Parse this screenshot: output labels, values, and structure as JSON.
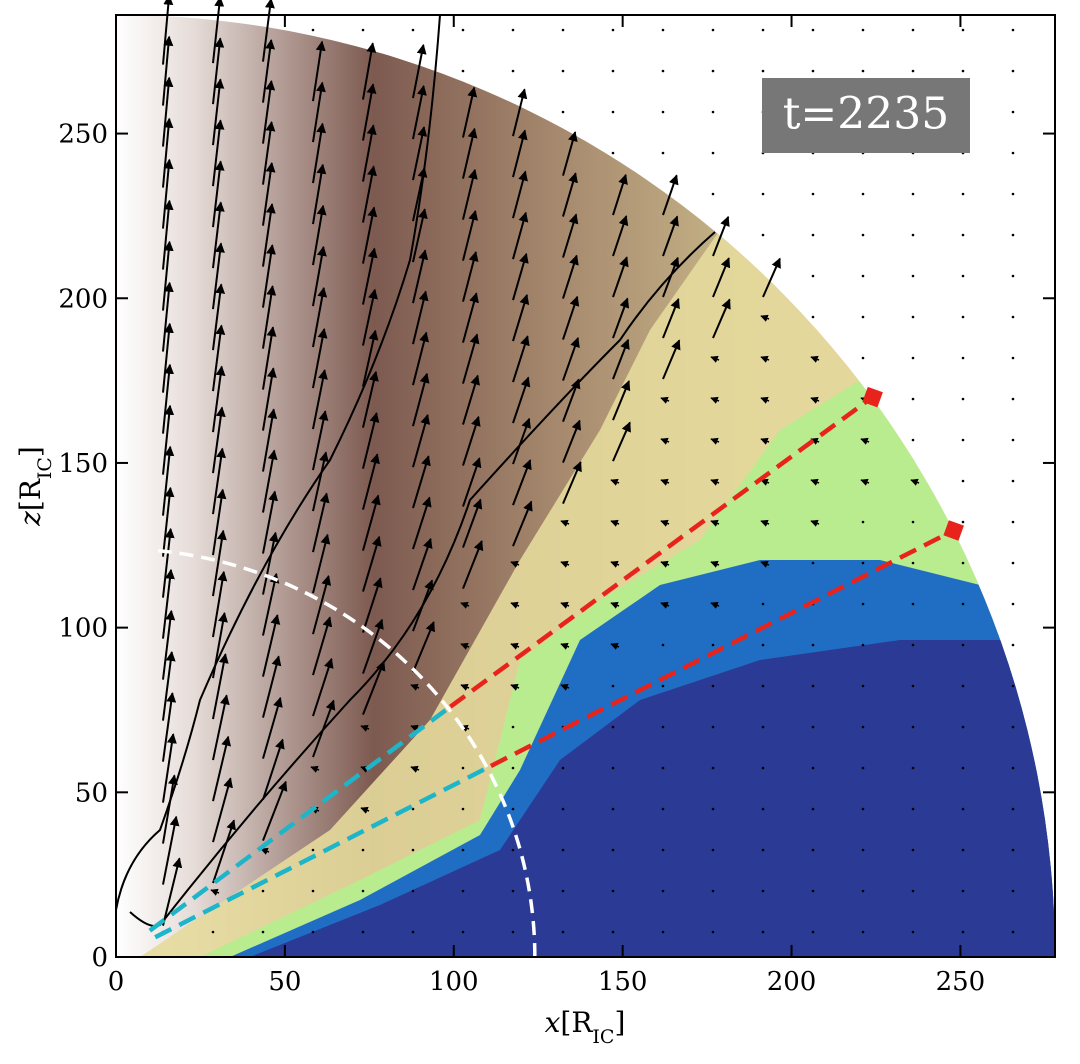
{
  "chart_data": {
    "type": "field",
    "annotation": "t=2235",
    "xlabel": [
      "x",
      "[R",
      "IC",
      "]"
    ],
    "ylabel": [
      "z",
      "[R",
      "IC",
      "]"
    ],
    "xlim": [
      0,
      278
    ],
    "ylim": [
      0,
      286
    ],
    "xticks": [
      0,
      50,
      100,
      150,
      200,
      250
    ],
    "yticks": [
      0,
      50,
      100,
      150,
      200,
      250
    ],
    "circle": {
      "radius": 124,
      "color": "#ffffff"
    },
    "lines": [
      {
        "color": "#1fb5c9",
        "x": [
          10,
          99
        ],
        "y": [
          8,
          76
        ]
      },
      {
        "color": "#1fb5c9",
        "x": [
          11.6,
          111
        ],
        "y": [
          6,
          58
        ]
      },
      {
        "color": "#e8231c",
        "marker": "square",
        "x": [
          99,
          224
        ],
        "y": [
          76,
          170
        ]
      },
      {
        "color": "#e8231c",
        "marker": "square",
        "x": [
          111,
          248
        ],
        "y": [
          58,
          129.5
        ]
      }
    ]
  }
}
